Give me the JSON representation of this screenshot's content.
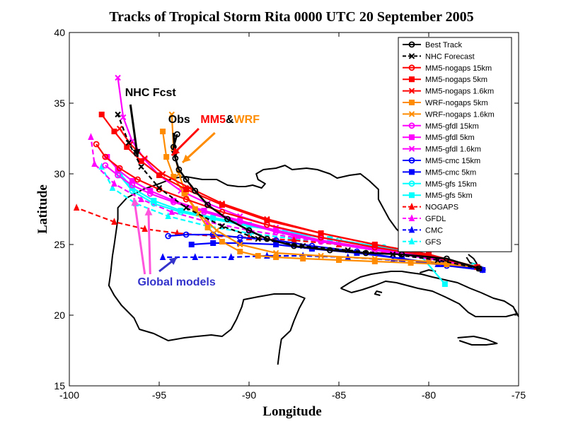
{
  "chart_data": {
    "type": "line",
    "title": "Tracks of Tropical Storm Rita 0000 UTC 20 September 2005",
    "xlabel": "Longitude",
    "ylabel": "Latitude",
    "xlim": [
      -100,
      -75
    ],
    "ylim": [
      15,
      40
    ],
    "xticks": [
      -100,
      -95,
      -90,
      -85,
      -80,
      -75
    ],
    "yticks": [
      15,
      20,
      25,
      30,
      35,
      40
    ],
    "grid": false,
    "legend_position": "top-right",
    "annotations": [
      {
        "text": "NHC Fcst",
        "color": "#000000",
        "x": -96.9,
        "y": 35.5,
        "arrow_to": [
          -96.2,
          31.2
        ]
      },
      {
        "text": "Obs",
        "color": "#000000",
        "x": -94.5,
        "y": 33.6,
        "arrow_to": [
          -94.1,
          31.1
        ]
      },
      {
        "text": "MM5",
        "color": "#ff0000",
        "x": -92.7,
        "y": 33.6,
        "arrow_to": [
          -94.3,
          31.3
        ]
      },
      {
        "text": "&",
        "color": "#000000"
      },
      {
        "text": "WRF",
        "color": "#ff8c00",
        "arrow_to": [
          -93.7,
          30.8
        ]
      },
      {
        "text": "Global models",
        "color": "#3333cc",
        "x": -96.2,
        "y": 22.1,
        "arrow_to": [
          -95.6,
          27.6
        ]
      }
    ],
    "series": [
      {
        "name": "Best Track",
        "color": "#000000",
        "dash": "",
        "marker": "circle",
        "x": [
          -77.2,
          -79.0,
          -81.5,
          -83.5,
          -85.5,
          -87.5,
          -89.0,
          -90.0,
          -91.2,
          -92.3,
          -93.0,
          -93.5,
          -93.9,
          -94.1,
          -94.2,
          -94.0
        ],
        "y": [
          23.3,
          24.0,
          24.3,
          24.4,
          24.6,
          24.9,
          25.4,
          26.0,
          26.8,
          27.8,
          28.8,
          29.6,
          30.3,
          31.1,
          31.9,
          32.8
        ]
      },
      {
        "name": "NHC Forecast",
        "color": "#000000",
        "dash": "6,4",
        "marker": "xmark",
        "x": [
          -77.2,
          -79.5,
          -82.0,
          -84.5,
          -87.0,
          -89.5,
          -91.5,
          -93.5,
          -95.0,
          -96.0,
          -96.7,
          -97.3
        ],
        "y": [
          23.3,
          23.9,
          24.3,
          24.6,
          24.9,
          25.4,
          26.3,
          27.6,
          29.0,
          30.5,
          32.2,
          34.2
        ]
      },
      {
        "name": "MM5-nogaps 15km",
        "color": "#ff0000",
        "dash": "",
        "marker": "circle",
        "x": [
          -77.3,
          -80.0,
          -83.0,
          -86.0,
          -89.0,
          -91.5,
          -93.5,
          -95.0,
          -96.2,
          -97.2,
          -98.0,
          -98.5
        ],
        "y": [
          23.4,
          24.2,
          24.8,
          25.5,
          26.4,
          27.3,
          28.2,
          28.9,
          29.6,
          30.4,
          31.2,
          32.1
        ]
      },
      {
        "name": "MM5-nogaps 5km",
        "color": "#ff0000",
        "dash": "",
        "marker": "square",
        "x": [
          -77.3,
          -80.0,
          -83.0,
          -86.0,
          -89.0,
          -91.5,
          -93.5,
          -95.0,
          -96.0,
          -96.8,
          -97.5,
          -98.2
        ],
        "y": [
          23.4,
          24.3,
          25.0,
          25.8,
          26.7,
          27.8,
          28.9,
          29.9,
          30.9,
          31.9,
          33.0,
          34.2
        ]
      },
      {
        "name": "MM5-nogaps 1.6km",
        "color": "#ff0000",
        "dash": "",
        "marker": "xmark",
        "x": [
          -77.3,
          -80.0,
          -83.0,
          -86.0,
          -89.0,
          -91.5,
          -93.3,
          -94.8,
          -95.8,
          -96.6,
          -97.2
        ],
        "y": [
          23.4,
          24.3,
          25.0,
          25.8,
          26.8,
          27.9,
          29.0,
          30.0,
          31.1,
          32.1,
          33.2
        ]
      },
      {
        "name": "WRF-nogaps 5km",
        "color": "#ff8c00",
        "dash": "",
        "marker": "square",
        "x": [
          -77.3,
          -79.0,
          -81.0,
          -83.0,
          -85.0,
          -87.0,
          -88.5,
          -89.5,
          -90.5,
          -91.5,
          -92.3,
          -93.0,
          -93.6,
          -94.2,
          -94.6,
          -94.8
        ],
        "y": [
          23.4,
          23.6,
          23.7,
          23.8,
          23.9,
          24.0,
          24.1,
          24.2,
          24.5,
          25.2,
          26.2,
          27.5,
          28.6,
          29.8,
          31.2,
          33.0
        ]
      },
      {
        "name": "WRF-nogaps 1.6km",
        "color": "#ff8c00",
        "dash": "",
        "marker": "xmark",
        "x": [
          -77.3,
          -80.0,
          -83.0,
          -86.0,
          -88.5,
          -90.5,
          -91.8,
          -92.8,
          -93.5,
          -93.9,
          -94.2,
          -94.3
        ],
        "y": [
          23.4,
          23.8,
          24.0,
          24.2,
          24.4,
          25.0,
          26.0,
          27.2,
          28.5,
          30.0,
          31.8,
          34.2
        ]
      },
      {
        "name": "MM5-gfdl 15km",
        "color": "#ff00ff",
        "dash": "",
        "marker": "circle",
        "x": [
          -77.3,
          -80.0,
          -83.0,
          -86.0,
          -88.5,
          -90.5,
          -92.5,
          -94.2,
          -95.5,
          -96.5,
          -97.3,
          -98.0
        ],
        "y": [
          23.4,
          24.0,
          24.6,
          25.2,
          25.9,
          26.6,
          27.3,
          28.0,
          28.6,
          29.2,
          29.9,
          30.6
        ]
      },
      {
        "name": "MM5-gfdl 5km",
        "color": "#ff00ff",
        "dash": "",
        "marker": "square",
        "x": [
          -77.3,
          -80.0,
          -83.0,
          -86.0,
          -88.5,
          -90.5,
          -92.5,
          -94.2,
          -95.5,
          -96.5,
          -97.3,
          -97.9
        ],
        "y": [
          23.4,
          24.1,
          24.7,
          25.3,
          26.0,
          26.7,
          27.4,
          28.1,
          28.8,
          29.5,
          30.3,
          31.2
        ]
      },
      {
        "name": "MM5-gfdl 1.6km",
        "color": "#ff00ff",
        "dash": "",
        "marker": "xmark",
        "x": [
          -77.3,
          -80.0,
          -83.0,
          -86.0,
          -88.5,
          -90.5,
          -92.3,
          -93.8,
          -95.0,
          -95.8,
          -96.5,
          -97.0,
          -97.3
        ],
        "y": [
          23.4,
          24.2,
          24.8,
          25.5,
          26.2,
          27.0,
          27.9,
          28.8,
          29.9,
          31.0,
          32.3,
          34.0,
          36.8
        ]
      },
      {
        "name": "MM5-cmc 15km",
        "color": "#0000ff",
        "dash": "",
        "marker": "circle",
        "x": [
          -77.0,
          -79.0,
          -81.5,
          -84.0,
          -86.5,
          -88.5,
          -90.5,
          -92.0,
          -93.5,
          -94.5
        ],
        "y": [
          23.2,
          23.5,
          24.0,
          24.5,
          24.9,
          25.3,
          25.5,
          25.7,
          25.7,
          25.6
        ]
      },
      {
        "name": "MM5-cmc 5km",
        "color": "#0000ff",
        "dash": "",
        "marker": "square",
        "x": [
          -77.0,
          -79.2,
          -81.5,
          -84.0,
          -86.5,
          -88.5,
          -90.5,
          -92.0,
          -93.2
        ],
        "y": [
          23.2,
          23.6,
          24.0,
          24.4,
          24.7,
          25.0,
          25.1,
          25.1,
          25.0
        ]
      },
      {
        "name": "MM5-gfs 15km",
        "color": "#00ffff",
        "dash": "",
        "marker": "circle",
        "x": [
          -77.5,
          -80.0,
          -82.5,
          -85.0,
          -87.5,
          -90.0,
          -92.0,
          -93.8,
          -95.3,
          -96.5,
          -97.2
        ],
        "y": [
          23.5,
          24.2,
          24.8,
          25.3,
          25.8,
          26.3,
          26.8,
          27.3,
          27.9,
          28.8,
          29.9
        ]
      },
      {
        "name": "MM5-gfs 5km",
        "color": "#00ffff",
        "dash": "",
        "marker": "square",
        "x": [
          -79.1,
          -80.5,
          -83.0,
          -85.5,
          -88.0,
          -90.0,
          -92.0,
          -93.8,
          -95.3,
          -96.5,
          -97.3
        ],
        "y": [
          22.2,
          24.3,
          24.9,
          25.4,
          25.9,
          26.4,
          26.9,
          27.4,
          28.1,
          29.0,
          30.2
        ]
      },
      {
        "name": "NOGAPS",
        "color": "#ff0000",
        "dash": "7,4",
        "marker": "triangle",
        "x": [
          -77.3,
          -80.0,
          -82.5,
          -85.0,
          -87.5,
          -90.0,
          -92.0,
          -94.0,
          -95.8,
          -97.5,
          -99.6
        ],
        "y": [
          23.4,
          24.1,
          24.6,
          25.0,
          25.3,
          25.5,
          25.6,
          25.8,
          26.1,
          26.6,
          27.6
        ]
      },
      {
        "name": "GFDL",
        "color": "#ff00ff",
        "dash": "7,4",
        "marker": "triangle",
        "x": [
          -77.3,
          -80.0,
          -82.5,
          -85.0,
          -87.5,
          -90.0,
          -92.3,
          -94.3,
          -96.0,
          -97.5,
          -98.6,
          -98.8
        ],
        "y": [
          23.4,
          24.0,
          24.5,
          25.0,
          25.5,
          26.0,
          26.6,
          27.3,
          28.2,
          29.3,
          30.7,
          32.6
        ]
      },
      {
        "name": "CMC",
        "color": "#0000ff",
        "dash": "7,4",
        "marker": "triangle",
        "x": [
          -77.0,
          -79.5,
          -82.0,
          -84.5,
          -87.0,
          -89.0,
          -91.0,
          -93.0,
          -94.8
        ],
        "y": [
          23.2,
          23.6,
          23.9,
          24.1,
          24.2,
          24.2,
          24.1,
          24.1,
          24.1
        ]
      },
      {
        "name": "GFS",
        "color": "#00ffff",
        "dash": "7,4",
        "marker": "triangle",
        "x": [
          -77.3,
          -80.0,
          -82.5,
          -85.0,
          -87.5,
          -90.0,
          -92.3,
          -94.5,
          -96.3,
          -97.6,
          -98.2
        ],
        "y": [
          23.4,
          24.0,
          24.5,
          25.0,
          25.4,
          25.8,
          26.3,
          27.0,
          27.9,
          29.0,
          30.5
        ]
      }
    ]
  }
}
